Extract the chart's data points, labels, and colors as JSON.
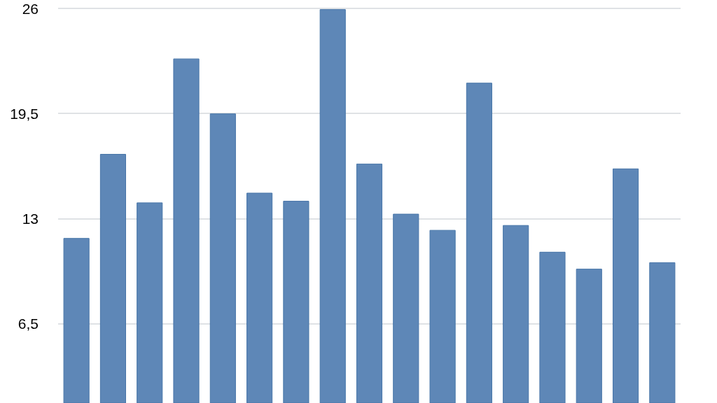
{
  "chart_data": {
    "type": "bar",
    "categories": [
      null,
      null,
      null,
      null,
      null,
      null,
      null,
      null,
      null,
      null,
      null,
      null,
      null,
      null,
      null,
      null,
      null
    ],
    "values": [
      11.8,
      17.0,
      14.0,
      22.9,
      19.5,
      14.6,
      14.1,
      25.95,
      16.4,
      13.3,
      12.3,
      21.4,
      12.6,
      10.95,
      9.9,
      16.1,
      10.3
    ],
    "color": "#5e87b7",
    "ylim": [
      1.6,
      26
    ],
    "yticks": [
      {
        "value": 6.5,
        "label": "6,5"
      },
      13,
      {
        "value": 19.5,
        "label": "19,5"
      },
      26
    ],
    "grid": "y",
    "tick_labels": "y"
  }
}
